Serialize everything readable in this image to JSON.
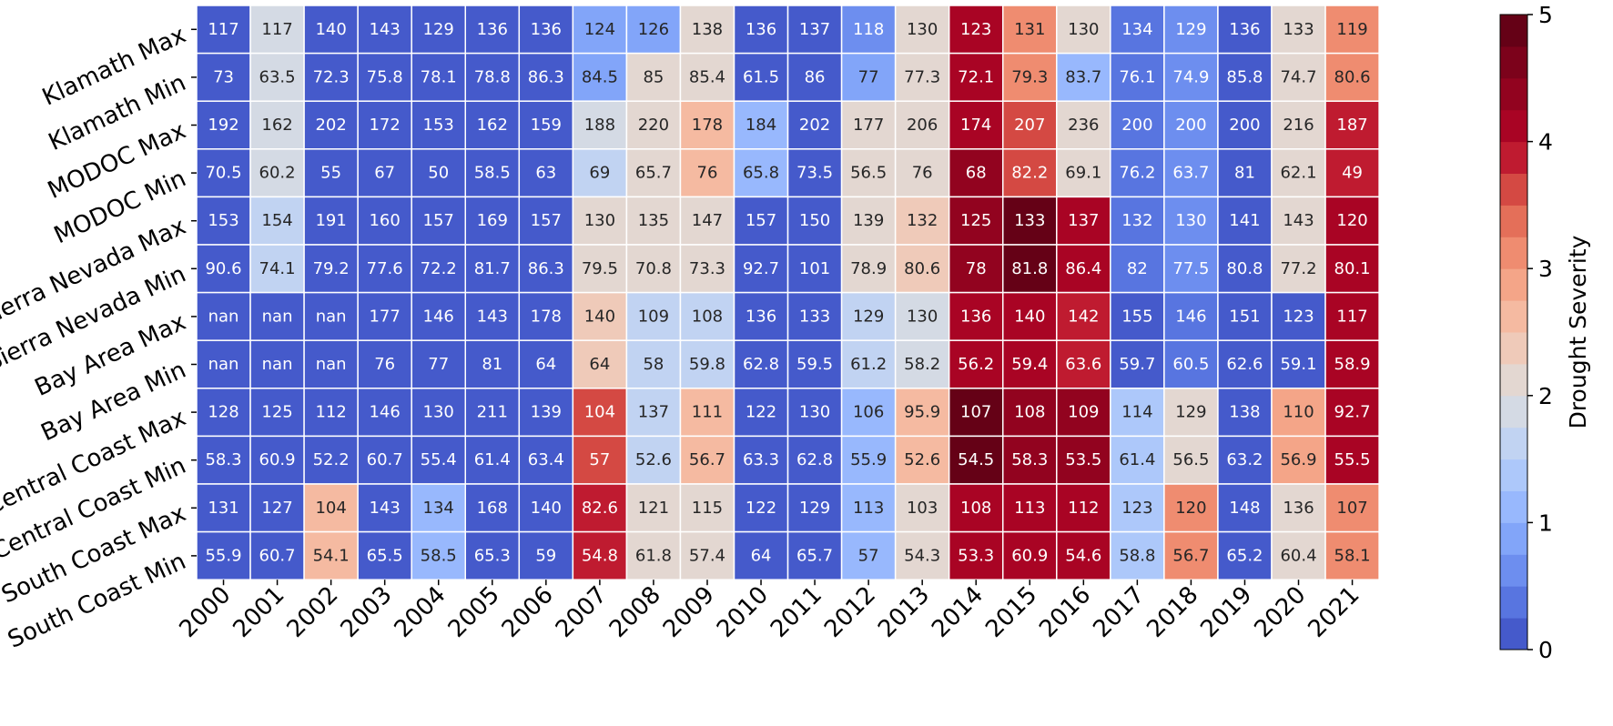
{
  "chart_data": {
    "type": "heatmap",
    "title": "",
    "xlabel": "",
    "ylabel": "",
    "x_categories": [
      "2000",
      "2001",
      "2002",
      "2003",
      "2004",
      "2005",
      "2006",
      "2007",
      "2008",
      "2009",
      "2010",
      "2011",
      "2012",
      "2013",
      "2014",
      "2015",
      "2016",
      "2017",
      "2018",
      "2019",
      "2020",
      "2021"
    ],
    "y_categories": [
      "Klamath Max",
      "Klamath Min",
      "MODOC Max",
      "MODOC Min",
      "Sierra Nevada Max",
      "Sierra Nevada Min",
      "Bay Area Max",
      "Bay Area Min",
      "Central Coast Max",
      "Central Coast Min",
      "South Coast Max",
      "South Coast Min"
    ],
    "annotations": [
      [
        "117",
        "117",
        "140",
        "143",
        "129",
        "136",
        "136",
        "124",
        "126",
        "138",
        "136",
        "137",
        "118",
        "130",
        "123",
        "131",
        "130",
        "134",
        "129",
        "136",
        "133",
        "119"
      ],
      [
        "73",
        "63.5",
        "72.3",
        "75.8",
        "78.1",
        "78.8",
        "86.3",
        "84.5",
        "85",
        "85.4",
        "61.5",
        "86",
        "77",
        "77.3",
        "72.1",
        "79.3",
        "83.7",
        "76.1",
        "74.9",
        "85.8",
        "74.7",
        "80.6"
      ],
      [
        "192",
        "162",
        "202",
        "172",
        "153",
        "162",
        "159",
        "188",
        "220",
        "178",
        "184",
        "202",
        "177",
        "206",
        "174",
        "207",
        "236",
        "200",
        "200",
        "200",
        "216",
        "187"
      ],
      [
        "70.5",
        "60.2",
        "55",
        "67",
        "50",
        "58.5",
        "63",
        "69",
        "65.7",
        "76",
        "65.8",
        "73.5",
        "56.5",
        "76",
        "68",
        "82.2",
        "69.1",
        "76.2",
        "63.7",
        "81",
        "62.1",
        "49"
      ],
      [
        "153",
        "154",
        "191",
        "160",
        "157",
        "169",
        "157",
        "130",
        "135",
        "147",
        "157",
        "150",
        "139",
        "132",
        "125",
        "133",
        "137",
        "132",
        "130",
        "141",
        "143",
        "120"
      ],
      [
        "90.6",
        "74.1",
        "79.2",
        "77.6",
        "72.2",
        "81.7",
        "86.3",
        "79.5",
        "70.8",
        "73.3",
        "92.7",
        "101",
        "78.9",
        "80.6",
        "78",
        "81.8",
        "86.4",
        "82",
        "77.5",
        "80.8",
        "77.2",
        "80.1"
      ],
      [
        "nan",
        "nan",
        "nan",
        "177",
        "146",
        "143",
        "178",
        "140",
        "109",
        "108",
        "136",
        "133",
        "129",
        "130",
        "136",
        "140",
        "142",
        "155",
        "146",
        "151",
        "123",
        "117"
      ],
      [
        "nan",
        "nan",
        "nan",
        "76",
        "77",
        "81",
        "64",
        "64",
        "58",
        "59.8",
        "62.8",
        "59.5",
        "61.2",
        "58.2",
        "56.2",
        "59.4",
        "63.6",
        "59.7",
        "60.5",
        "62.6",
        "59.1",
        "58.9"
      ],
      [
        "128",
        "125",
        "112",
        "146",
        "130",
        "211",
        "139",
        "104",
        "137",
        "111",
        "122",
        "130",
        "106",
        "95.9",
        "107",
        "108",
        "109",
        "114",
        "129",
        "138",
        "110",
        "92.7"
      ],
      [
        "58.3",
        "60.9",
        "52.2",
        "60.7",
        "55.4",
        "61.4",
        "63.4",
        "57",
        "52.6",
        "56.7",
        "63.3",
        "62.8",
        "55.9",
        "52.6",
        "54.5",
        "58.3",
        "53.5",
        "61.4",
        "56.5",
        "63.2",
        "56.9",
        "55.5"
      ],
      [
        "131",
        "127",
        "104",
        "143",
        "134",
        "168",
        "140",
        "82.6",
        "121",
        "115",
        "122",
        "129",
        "113",
        "103",
        "108",
        "113",
        "112",
        "123",
        "120",
        "148",
        "136",
        "107"
      ],
      [
        "55.9",
        "60.7",
        "54.1",
        "65.5",
        "58.5",
        "65.3",
        "59",
        "54.8",
        "61.8",
        "57.4",
        "64",
        "65.7",
        "57",
        "54.3",
        "53.3",
        "60.9",
        "54.6",
        "58.8",
        "56.7",
        "65.2",
        "60.4",
        "58.1"
      ]
    ],
    "severity": [
      [
        0,
        1.9,
        0,
        0,
        0,
        0,
        0,
        0.8,
        0.8,
        2,
        0,
        0,
        0.5,
        2,
        4.2,
        3,
        2,
        0.3,
        0.5,
        0,
        2.2,
        3.2
      ],
      [
        0,
        1.9,
        0,
        0,
        0,
        0,
        0,
        0.8,
        2,
        2,
        0,
        0,
        0.8,
        2,
        4.2,
        3,
        1.2,
        0.3,
        0.5,
        0,
        2.2,
        3.2
      ],
      [
        0,
        1.9,
        0,
        0,
        0,
        0,
        0,
        1.8,
        2,
        2.7,
        1.2,
        0,
        2,
        2.2,
        4.2,
        3.5,
        2,
        0.3,
        0.5,
        0,
        2.2,
        3.8
      ],
      [
        0,
        1.9,
        0,
        0,
        0,
        0,
        0,
        1.7,
        2,
        2.7,
        1.2,
        0,
        2,
        2.2,
        4.3,
        3.5,
        2,
        0.3,
        0.5,
        0,
        2.2,
        3.8
      ],
      [
        0,
        1.5,
        0,
        0,
        0,
        0,
        0,
        2.2,
        2.1,
        2.1,
        0,
        0,
        2.1,
        2.4,
        4.4,
        5,
        4.2,
        0.4,
        0.6,
        0,
        2,
        4.1
      ],
      [
        0,
        1.5,
        0,
        0,
        0,
        0,
        0,
        2.2,
        2.1,
        2.1,
        0,
        0,
        2.1,
        2.4,
        4.4,
        5,
        4.2,
        0.4,
        0.6,
        0,
        2,
        4.1
      ],
      [
        0,
        0,
        0,
        0,
        0,
        0,
        0,
        2.3,
        1.5,
        1.7,
        0,
        0,
        1.7,
        1.9,
        4.1,
        4.1,
        3.9,
        0.2,
        0.4,
        0,
        0.1,
        4
      ],
      [
        0,
        0,
        0,
        0,
        0,
        0,
        0,
        2.3,
        1.5,
        1.7,
        0,
        0,
        1.7,
        1.9,
        4.1,
        4.1,
        3.9,
        0.2,
        0.4,
        0,
        0.1,
        4
      ],
      [
        0,
        0,
        0,
        0,
        0,
        0,
        0,
        3.5,
        1.5,
        2.6,
        0,
        0,
        1.2,
        2.6,
        4.8,
        4.4,
        4.3,
        1.4,
        2.1,
        0,
        2.9,
        4
      ],
      [
        0,
        0,
        0,
        0,
        0,
        0,
        0,
        3.5,
        1.5,
        2.6,
        0,
        0,
        1.2,
        2.6,
        4.8,
        4.4,
        4.3,
        1.4,
        2.1,
        0,
        2.9,
        4
      ],
      [
        0,
        0,
        2.5,
        0,
        1.1,
        0,
        0,
        3.9,
        2.1,
        2.1,
        0,
        0,
        1,
        2.2,
        4.1,
        4.2,
        4.2,
        1.4,
        3,
        0,
        2.1,
        3
      ],
      [
        0,
        0,
        2.5,
        0,
        1.1,
        0,
        0,
        3.9,
        2.1,
        2.1,
        0,
        0,
        1,
        2.2,
        4.1,
        4.2,
        4.2,
        1.4,
        3,
        0,
        2.1,
        3
      ]
    ],
    "colorbar": {
      "label": "Drought Severity",
      "min": 0,
      "max": 5,
      "ticks": [
        "0",
        "1",
        "2",
        "3",
        "4",
        "5"
      ],
      "levels": 20,
      "colormap": "coolwarm"
    }
  }
}
